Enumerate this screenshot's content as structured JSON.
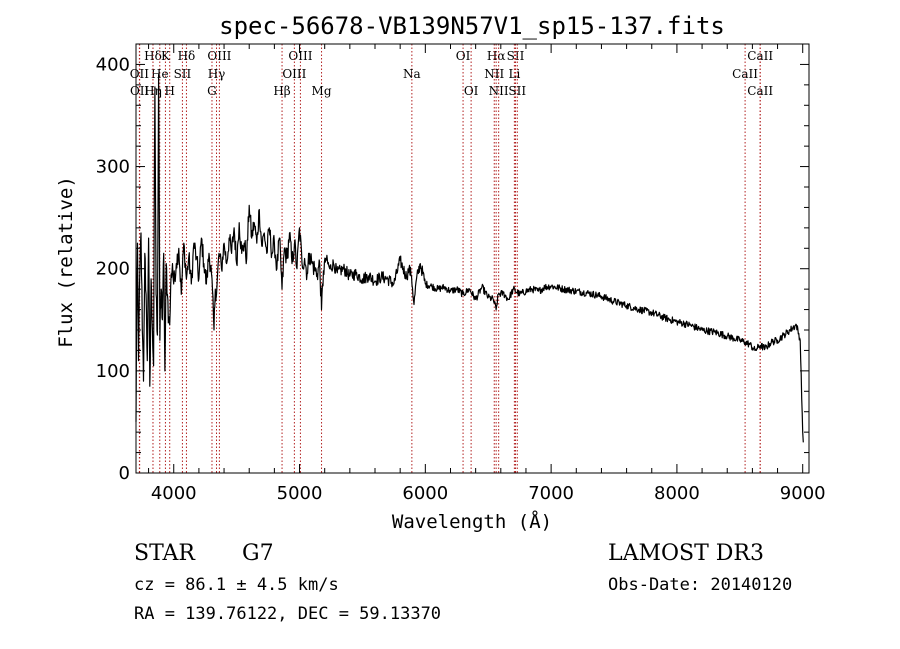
{
  "chart_data": {
    "type": "line",
    "title": "spec-56678-VB139N57V1_sp15-137.fits",
    "xlabel": "Wavelength (Å)",
    "ylabel": "Flux (relative)",
    "xlim": [
      3700,
      9050
    ],
    "ylim": [
      0,
      420
    ],
    "xticks": [
      {
        "value": 4000,
        "label": "4000"
      },
      {
        "value": 5000,
        "label": "5000"
      },
      {
        "value": 6000,
        "label": "6000"
      },
      {
        "value": 7000,
        "label": "7000"
      },
      {
        "value": 8000,
        "label": "8000"
      },
      {
        "value": 9000,
        "label": "9000"
      }
    ],
    "yticks": [
      {
        "value": 0,
        "label": "0"
      },
      {
        "value": 100,
        "label": "100"
      },
      {
        "value": 200,
        "label": "200"
      },
      {
        "value": 300,
        "label": "300"
      },
      {
        "value": 400,
        "label": "400"
      }
    ],
    "x_minor_step": 200,
    "y_minor_step": 20,
    "spectrum": {
      "name": "flux",
      "x": [
        3700,
        3705,
        3712,
        3720,
        3730,
        3740,
        3750,
        3760,
        3770,
        3780,
        3790,
        3800,
        3810,
        3820,
        3830,
        3840,
        3850,
        3860,
        3870,
        3880,
        3890,
        3900,
        3910,
        3920,
        3930,
        3940,
        3950,
        3960,
        3968,
        3980,
        3990,
        4000,
        4020,
        4040,
        4060,
        4080,
        4101,
        4120,
        4140,
        4160,
        4180,
        4200,
        4220,
        4240,
        4260,
        4280,
        4300,
        4320,
        4330,
        4340,
        4360,
        4380,
        4400,
        4420,
        4440,
        4460,
        4480,
        4500,
        4520,
        4540,
        4560,
        4580,
        4600,
        4620,
        4640,
        4660,
        4680,
        4700,
        4720,
        4740,
        4760,
        4780,
        4800,
        4820,
        4840,
        4861,
        4880,
        4900,
        4920,
        4940,
        4960,
        4980,
        5000,
        5020,
        5040,
        5060,
        5080,
        5100,
        5120,
        5140,
        5160,
        5175,
        5190,
        5210,
        5240,
        5270,
        5300,
        5350,
        5400,
        5450,
        5500,
        5550,
        5600,
        5650,
        5700,
        5750,
        5800,
        5850,
        5870,
        5890,
        5910,
        5930,
        5960,
        6000,
        6050,
        6100,
        6150,
        6200,
        6250,
        6300,
        6350,
        6400,
        6450,
        6500,
        6540,
        6563,
        6580,
        6620,
        6660,
        6700,
        6750,
        6800,
        6850,
        6900,
        6950,
        7000,
        7100,
        7200,
        7300,
        7400,
        7500,
        7600,
        7700,
        7800,
        7900,
        8000,
        8100,
        8200,
        8300,
        8400,
        8450,
        8498,
        8542,
        8580,
        8620,
        8662,
        8700,
        8750,
        8800,
        8850,
        8900,
        8950,
        8980,
        9000,
        9005
      ],
      "y": [
        50,
        150,
        225,
        110,
        195,
        235,
        140,
        90,
        215,
        175,
        110,
        230,
        85,
        190,
        140,
        105,
        378,
        175,
        135,
        390,
        130,
        180,
        150,
        215,
        100,
        205,
        175,
        150,
        145,
        195,
        205,
        185,
        205,
        220,
        175,
        225,
        190,
        212,
        185,
        225,
        210,
        190,
        230,
        205,
        185,
        215,
        195,
        140,
        180,
        175,
        215,
        200,
        225,
        205,
        230,
        215,
        240,
        205,
        245,
        215,
        225,
        210,
        262,
        230,
        245,
        225,
        258,
        222,
        235,
        215,
        240,
        215,
        225,
        200,
        230,
        180,
        220,
        210,
        235,
        205,
        225,
        200,
        240,
        205,
        210,
        195,
        215,
        205,
        200,
        195,
        205,
        160,
        198,
        210,
        200,
        205,
        196,
        200,
        193,
        195,
        190,
        193,
        188,
        192,
        190,
        185,
        208,
        192,
        200,
        193,
        165,
        190,
        205,
        185,
        183,
        180,
        182,
        178,
        180,
        175,
        180,
        170,
        182,
        172,
        170,
        160,
        175,
        176,
        170,
        180,
        175,
        178,
        180,
        178,
        182,
        183,
        180,
        178,
        176,
        173,
        168,
        164,
        160,
        157,
        152,
        148,
        145,
        140,
        138,
        134,
        132,
        130,
        128,
        126,
        120,
        125,
        122,
        128,
        130,
        135,
        140,
        145,
        130,
        40,
        30
      ]
    },
    "line_markers": [
      {
        "label": "Hδ",
        "x": 3835,
        "row": 0
      },
      {
        "label": "K",
        "x": 3934,
        "row": 0
      },
      {
        "label": "Hδ",
        "x": 4101,
        "row": 0
      },
      {
        "label": "OIII",
        "x": 4363,
        "row": 0
      },
      {
        "label": "OIII",
        "x": 5007,
        "row": 0
      },
      {
        "label": "OI",
        "x": 6300,
        "row": 0
      },
      {
        "label": "Hα",
        "x": 6563,
        "row": 0
      },
      {
        "label": "SII",
        "x": 6717,
        "row": 0
      },
      {
        "label": "CaII",
        "x": 8662,
        "row": 0
      },
      {
        "label": "OII",
        "x": 3727,
        "row": 1
      },
      {
        "label": "He",
        "x": 3889,
        "row": 1
      },
      {
        "label": "SII",
        "x": 4069,
        "row": 1
      },
      {
        "label": "Hγ",
        "x": 4340,
        "row": 1
      },
      {
        "label": "OIII",
        "x": 4959,
        "row": 1
      },
      {
        "label": "Na",
        "x": 5893,
        "row": 1
      },
      {
        "label": "NII",
        "x": 6548,
        "row": 1
      },
      {
        "label": "Li",
        "x": 6708,
        "row": 1
      },
      {
        "label": "CaII",
        "x": 8542,
        "row": 1
      },
      {
        "label": "OII",
        "x": 3729,
        "row": 2
      },
      {
        "label": "Hη",
        "x": 3835,
        "row": 2
      },
      {
        "label": "H",
        "x": 3968,
        "row": 2
      },
      {
        "label": "G",
        "x": 4304,
        "row": 2
      },
      {
        "label": "Hβ",
        "x": 4861,
        "row": 2
      },
      {
        "label": "Mg",
        "x": 5175,
        "row": 2
      },
      {
        "label": "OI",
        "x": 6364,
        "row": 2
      },
      {
        "label": "NII",
        "x": 6583,
        "row": 2
      },
      {
        "label": "SII",
        "x": 6731,
        "row": 2
      },
      {
        "label": "CaII",
        "x": 8662,
        "row": 2
      }
    ],
    "marker_color": "#b22222",
    "line_color": "#000000"
  },
  "info": {
    "object_type": "STAR",
    "subclass": "G7",
    "survey": "LAMOST DR3",
    "redshift": "cz =  86.1 ± 4.5 km/s",
    "obs_date": "Obs-Date: 20140120",
    "coords": "RA = 139.76122, DEC =  59.13370"
  }
}
